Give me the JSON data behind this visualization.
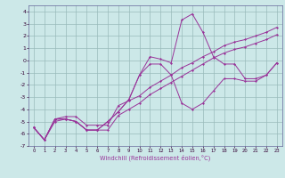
{
  "xlabel": "Windchill (Refroidissement éolien,°C)",
  "x": [
    0,
    1,
    2,
    3,
    4,
    5,
    6,
    7,
    8,
    9,
    10,
    11,
    12,
    13,
    14,
    15,
    16,
    17,
    18,
    19,
    20,
    21,
    22,
    23
  ],
  "line_wavy": [
    -5.5,
    -6.5,
    -4.8,
    -4.8,
    -5.0,
    -5.7,
    -5.7,
    -5.0,
    -4.2,
    -3.2,
    -1.2,
    -0.3,
    -0.3,
    -1.2,
    -3.5,
    -4.0,
    -3.5,
    -2.5,
    -1.5,
    -1.5,
    -1.7,
    -1.7,
    -1.2,
    -0.2
  ],
  "line_peak": [
    -5.5,
    -6.5,
    -4.8,
    -4.8,
    -5.0,
    -5.7,
    -5.7,
    -5.0,
    -4.2,
    -3.2,
    -1.2,
    0.3,
    0.1,
    -0.2,
    3.3,
    3.8,
    2.3,
    0.3,
    -0.3,
    -0.3,
    -1.5,
    -1.5,
    -1.2,
    -0.2
  ],
  "line_upper_diag": [
    -5.5,
    -6.5,
    -4.8,
    -4.6,
    -4.6,
    -5.3,
    -5.3,
    -5.3,
    -3.7,
    -3.3,
    -2.9,
    -2.2,
    -1.7,
    -1.2,
    -0.6,
    -0.2,
    0.3,
    0.7,
    1.2,
    1.5,
    1.7,
    2.0,
    2.3,
    2.7
  ],
  "line_lower_diag": [
    -5.5,
    -6.5,
    -5.0,
    -4.8,
    -5.0,
    -5.7,
    -5.7,
    -5.7,
    -4.5,
    -4.0,
    -3.5,
    -2.8,
    -2.3,
    -1.8,
    -1.3,
    -0.8,
    -0.3,
    0.2,
    0.6,
    0.9,
    1.1,
    1.4,
    1.7,
    2.1
  ],
  "ylim": [
    -7,
    4.5
  ],
  "xlim": [
    -0.5,
    23.5
  ],
  "yticks": [
    -7,
    -6,
    -5,
    -4,
    -3,
    -2,
    -1,
    0,
    1,
    2,
    3,
    4
  ],
  "xticks": [
    0,
    1,
    2,
    3,
    4,
    5,
    6,
    7,
    8,
    9,
    10,
    11,
    12,
    13,
    14,
    15,
    16,
    17,
    18,
    19,
    20,
    21,
    22,
    23
  ],
  "line_color": "#993399",
  "bg_color": "#cce8e8",
  "grid_color": "#99bbbb"
}
